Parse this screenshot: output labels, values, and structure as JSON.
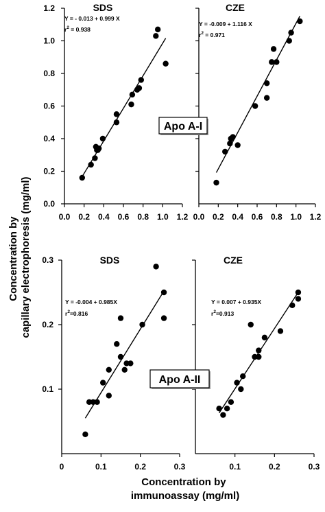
{
  "figure": {
    "y_axis_title": [
      "Concentration by",
      "capillary electrophoresis (mg/ml)"
    ],
    "x_axis_title": [
      "Concentration by",
      "immunoassay (mg/ml)"
    ]
  },
  "chart_data": [
    {
      "type": "scatter",
      "title": "SDS",
      "protein_label": "",
      "equation": "Y = - 0.013 + 0.999 X",
      "r2_prefix": "r",
      "r2_value": " = 0.938",
      "xlim": [
        0.0,
        1.2
      ],
      "ylim": [
        0.0,
        1.2
      ],
      "x_ticks": [
        "0.0",
        "0.2",
        "0.4",
        "0.6",
        "0.8",
        "1.0",
        "1.2"
      ],
      "y_ticks": [
        "0.0",
        "0.2",
        "0.4",
        "0.6",
        "0.8",
        "1.0",
        "1.2"
      ],
      "fit": {
        "intercept": -0.013,
        "slope": 0.999,
        "x_range": [
          0.18,
          1.03
        ]
      },
      "points": [
        {
          "x": 0.18,
          "y": 0.16
        },
        {
          "x": 0.27,
          "y": 0.24
        },
        {
          "x": 0.31,
          "y": 0.28
        },
        {
          "x": 0.32,
          "y": 0.35
        },
        {
          "x": 0.33,
          "y": 0.33
        },
        {
          "x": 0.34,
          "y": 0.33
        },
        {
          "x": 0.35,
          "y": 0.34
        },
        {
          "x": 0.39,
          "y": 0.4
        },
        {
          "x": 0.53,
          "y": 0.5
        },
        {
          "x": 0.53,
          "y": 0.55
        },
        {
          "x": 0.68,
          "y": 0.61
        },
        {
          "x": 0.69,
          "y": 0.67
        },
        {
          "x": 0.74,
          "y": 0.7
        },
        {
          "x": 0.76,
          "y": 0.71
        },
        {
          "x": 0.78,
          "y": 0.76
        },
        {
          "x": 0.93,
          "y": 1.03
        },
        {
          "x": 0.95,
          "y": 1.07
        },
        {
          "x": 1.03,
          "y": 0.86
        }
      ]
    },
    {
      "type": "scatter",
      "title": "CZE",
      "protein_label": "Apo A-I",
      "equation": "Y = -0.009 + 1.116 X",
      "r2_prefix": "r",
      "r2_value": " = 0.971",
      "xlim": [
        0.0,
        1.2
      ],
      "ylim": [
        0.0,
        1.2
      ],
      "x_ticks": [
        "0.0",
        "0.2",
        "0.4",
        "0.6",
        "0.8",
        "1.0",
        "1.2"
      ],
      "y_ticks": [],
      "fit": {
        "intercept": -0.009,
        "slope": 1.116,
        "x_range": [
          0.18,
          1.04
        ]
      },
      "points": [
        {
          "x": 0.18,
          "y": 0.13
        },
        {
          "x": 0.27,
          "y": 0.32
        },
        {
          "x": 0.32,
          "y": 0.37
        },
        {
          "x": 0.33,
          "y": 0.4
        },
        {
          "x": 0.35,
          "y": 0.41
        },
        {
          "x": 0.4,
          "y": 0.36
        },
        {
          "x": 0.58,
          "y": 0.6
        },
        {
          "x": 0.7,
          "y": 0.65
        },
        {
          "x": 0.7,
          "y": 0.74
        },
        {
          "x": 0.75,
          "y": 0.87
        },
        {
          "x": 0.77,
          "y": 0.95
        },
        {
          "x": 0.8,
          "y": 0.87
        },
        {
          "x": 0.93,
          "y": 1.0
        },
        {
          "x": 0.95,
          "y": 1.05
        },
        {
          "x": 1.04,
          "y": 1.12
        }
      ]
    },
    {
      "type": "scatter",
      "title": "SDS",
      "protein_label": "",
      "equation": "Y = -0.004 + 0.985X",
      "r2_prefix": "r",
      "r2_value": "=0.816",
      "xlim": [
        0.0,
        0.3
      ],
      "ylim": [
        0.0,
        0.3
      ],
      "x_ticks": [
        "0",
        "0.1",
        "0.2",
        "0.3"
      ],
      "y_ticks": [
        "0.1",
        "0.2",
        "0.3"
      ],
      "fit": {
        "intercept": -0.004,
        "slope": 0.985,
        "x_range": [
          0.06,
          0.26
        ]
      },
      "points": [
        {
          "x": 0.06,
          "y": 0.03
        },
        {
          "x": 0.07,
          "y": 0.08
        },
        {
          "x": 0.08,
          "y": 0.08
        },
        {
          "x": 0.09,
          "y": 0.08
        },
        {
          "x": 0.105,
          "y": 0.11
        },
        {
          "x": 0.12,
          "y": 0.09
        },
        {
          "x": 0.12,
          "y": 0.13
        },
        {
          "x": 0.14,
          "y": 0.17
        },
        {
          "x": 0.15,
          "y": 0.15
        },
        {
          "x": 0.15,
          "y": 0.21
        },
        {
          "x": 0.16,
          "y": 0.13
        },
        {
          "x": 0.165,
          "y": 0.14
        },
        {
          "x": 0.175,
          "y": 0.14
        },
        {
          "x": 0.205,
          "y": 0.2
        },
        {
          "x": 0.24,
          "y": 0.29
        },
        {
          "x": 0.26,
          "y": 0.25
        },
        {
          "x": 0.26,
          "y": 0.21
        }
      ]
    },
    {
      "type": "scatter",
      "title": "CZE",
      "protein_label": "Apo A-II",
      "equation": "Y = 0.007 + 0.935X",
      "r2_prefix": "r",
      "r2_value": "=0.913",
      "xlim": [
        0.0,
        0.3
      ],
      "ylim": [
        0.0,
        0.3
      ],
      "x_ticks": [
        "0.1",
        "0.2",
        "0.3"
      ],
      "y_ticks": [],
      "fit": {
        "intercept": 0.007,
        "slope": 0.935,
        "x_range": [
          0.06,
          0.26
        ]
      },
      "points": [
        {
          "x": 0.06,
          "y": 0.07
        },
        {
          "x": 0.07,
          "y": 0.06
        },
        {
          "x": 0.08,
          "y": 0.07
        },
        {
          "x": 0.09,
          "y": 0.08
        },
        {
          "x": 0.105,
          "y": 0.11
        },
        {
          "x": 0.115,
          "y": 0.1
        },
        {
          "x": 0.12,
          "y": 0.12
        },
        {
          "x": 0.14,
          "y": 0.2
        },
        {
          "x": 0.15,
          "y": 0.15
        },
        {
          "x": 0.16,
          "y": 0.15
        },
        {
          "x": 0.16,
          "y": 0.16
        },
        {
          "x": 0.175,
          "y": 0.18
        },
        {
          "x": 0.215,
          "y": 0.19
        },
        {
          "x": 0.245,
          "y": 0.23
        },
        {
          "x": 0.26,
          "y": 0.24
        },
        {
          "x": 0.26,
          "y": 0.25
        }
      ]
    }
  ]
}
